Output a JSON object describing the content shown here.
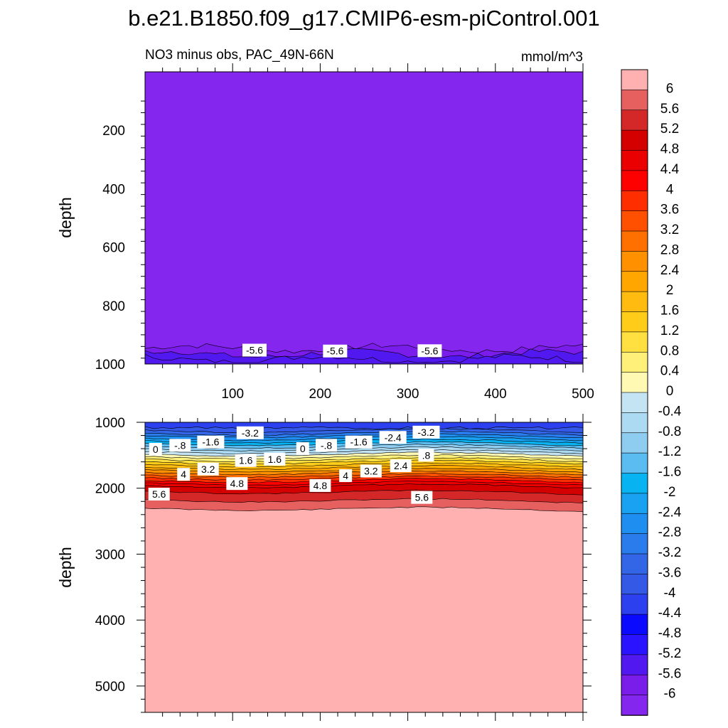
{
  "title": "b.e21.B1850.f09_g17.CMIP6-esm-piControl.001",
  "chart_data": [
    {
      "type": "heatmap",
      "panel": "upper",
      "subtitle_left": "NO3 minus obs, PAC_49N-66N",
      "subtitle_right": "mmol/m^3",
      "ylabel": "depth",
      "xlim": [
        0,
        500
      ],
      "ylim": [
        1000,
        0
      ],
      "xticks": [
        100,
        200,
        300,
        400,
        500
      ],
      "yticks": [
        200,
        400,
        600,
        800,
        1000
      ],
      "field_summary": "Nearly uniform value below -6 above ~960 m; values near -5.6 in a thin layer just above 1000 m",
      "contour_labels": [
        {
          "text": "-5.6",
          "x": 125,
          "depth": 955
        },
        {
          "text": "-5.6",
          "x": 217,
          "depth": 958
        },
        {
          "text": "-5.6",
          "x": 325,
          "depth": 957
        }
      ]
    },
    {
      "type": "heatmap",
      "panel": "lower",
      "ylabel": "depth",
      "xlim": [
        0,
        500
      ],
      "ylim": [
        5400,
        1000
      ],
      "yticks": [
        1000,
        2000,
        3000,
        4000,
        5000
      ],
      "field_summary": "Strong gradient from about -4 at 1000 m to above 6 below ~2250 m",
      "contour_labels": [
        {
          "text": "-3.2",
          "x": 120,
          "depth": 1170
        },
        {
          "text": "-.8",
          "x": 40,
          "depth": 1360
        },
        {
          "text": "-1.6",
          "x": 75,
          "depth": 1310
        },
        {
          "text": "0",
          "x": 12,
          "depth": 1420
        },
        {
          "text": "1.6",
          "x": 115,
          "depth": 1590
        },
        {
          "text": "1.6",
          "x": 148,
          "depth": 1570
        },
        {
          "text": "0",
          "x": 180,
          "depth": 1410
        },
        {
          "text": "-.8",
          "x": 207,
          "depth": 1360
        },
        {
          "text": "-1.6",
          "x": 244,
          "depth": 1310
        },
        {
          "text": "-2.4",
          "x": 283,
          "depth": 1240
        },
        {
          "text": "-3.2",
          "x": 321,
          "depth": 1160
        },
        {
          "text": ".8",
          "x": 321,
          "depth": 1510
        },
        {
          "text": "4",
          "x": 44,
          "depth": 1800
        },
        {
          "text": "3.2",
          "x": 72,
          "depth": 1720
        },
        {
          "text": "4.8",
          "x": 105,
          "depth": 1940
        },
        {
          "text": "4.8",
          "x": 200,
          "depth": 1970
        },
        {
          "text": "4",
          "x": 229,
          "depth": 1820
        },
        {
          "text": "3.2",
          "x": 258,
          "depth": 1750
        },
        {
          "text": "2.4",
          "x": 292,
          "depth": 1670
        },
        {
          "text": "5.6",
          "x": 16,
          "depth": 2100
        },
        {
          "text": "5.6",
          "x": 316,
          "depth": 2150
        }
      ]
    }
  ],
  "colorbar": {
    "labels": [
      "6",
      "5.6",
      "5.2",
      "4.8",
      "4.4",
      "4",
      "3.6",
      "3.2",
      "2.8",
      "2.4",
      "2",
      "1.6",
      "1.2",
      "0.8",
      "0.4",
      "0",
      "-0.4",
      "-0.8",
      "-1.2",
      "-1.6",
      "-2",
      "-2.4",
      "-2.8",
      "-3.2",
      "-3.6",
      "-4",
      "-4.4",
      "-4.8",
      "-5.2",
      "-5.6",
      "-6"
    ],
    "colors": [
      "#ffb0b0",
      "#e66060",
      "#d42828",
      "#d40000",
      "#ea0000",
      "#ff0000",
      "#ff2e00",
      "#ff5000",
      "#ff7000",
      "#ff9000",
      "#ffa600",
      "#ffbb10",
      "#ffcc1a",
      "#ffe040",
      "#fff07a",
      "#fff9b4",
      "#c4e4f4",
      "#acdaf2",
      "#8ecdf0",
      "#5abcf0",
      "#08b3f2",
      "#1aa2f2",
      "#1e8ff0",
      "#2a7ced",
      "#3266e6",
      "#3459e6",
      "#2c40ef",
      "#0a0aff",
      "#2a14ff",
      "#5218f0",
      "#7a1cea",
      "#8426ee"
    ]
  }
}
